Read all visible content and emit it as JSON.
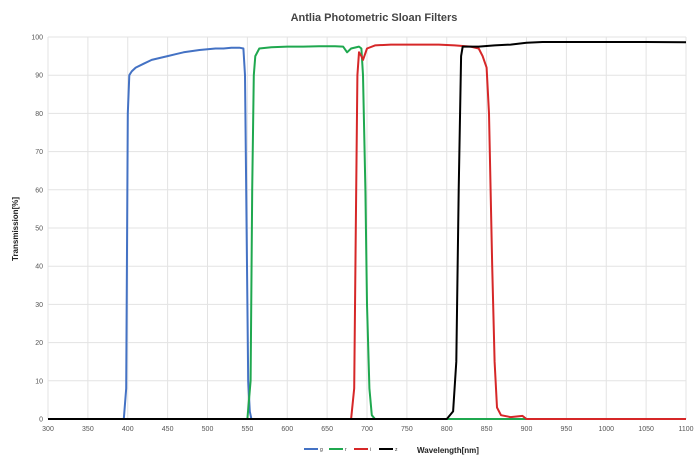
{
  "chart_data": {
    "type": "line",
    "title": "Antlia Photometric Sloan Filters",
    "xlabel": "Wavelength[nm]",
    "ylabel": "Transmission[%]",
    "xlim": [
      300,
      1100
    ],
    "ylim": [
      0,
      100
    ],
    "xticks": [
      300,
      350,
      400,
      450,
      500,
      550,
      600,
      650,
      700,
      750,
      800,
      850,
      900,
      950,
      1000,
      1050,
      1100
    ],
    "yticks": [
      0,
      10,
      20,
      30,
      40,
      50,
      60,
      70,
      80,
      90,
      100
    ],
    "grid": true,
    "legend_position": "bottom",
    "series": [
      {
        "name": "g",
        "color": "#4472C4",
        "points": [
          [
            300,
            0
          ],
          [
            395,
            0
          ],
          [
            398,
            8
          ],
          [
            400,
            80
          ],
          [
            402,
            90
          ],
          [
            405,
            91
          ],
          [
            410,
            92
          ],
          [
            420,
            93
          ],
          [
            430,
            94
          ],
          [
            440,
            94.5
          ],
          [
            450,
            95
          ],
          [
            460,
            95.5
          ],
          [
            470,
            96
          ],
          [
            480,
            96.3
          ],
          [
            490,
            96.6
          ],
          [
            500,
            96.8
          ],
          [
            510,
            97
          ],
          [
            520,
            97
          ],
          [
            530,
            97.2
          ],
          [
            540,
            97.2
          ],
          [
            545,
            97
          ],
          [
            547,
            90
          ],
          [
            549,
            50
          ],
          [
            551,
            10
          ],
          [
            553,
            2
          ],
          [
            555,
            0
          ],
          [
            1100,
            0
          ]
        ]
      },
      {
        "name": "r",
        "color": "#1FA84F",
        "points": [
          [
            300,
            0
          ],
          [
            550,
            0
          ],
          [
            554,
            10
          ],
          [
            556,
            60
          ],
          [
            558,
            90
          ],
          [
            560,
            95
          ],
          [
            565,
            97
          ],
          [
            580,
            97.3
          ],
          [
            600,
            97.5
          ],
          [
            620,
            97.5
          ],
          [
            640,
            97.6
          ],
          [
            660,
            97.6
          ],
          [
            670,
            97.5
          ],
          [
            675,
            96
          ],
          [
            680,
            97
          ],
          [
            690,
            97.5
          ],
          [
            693,
            97
          ],
          [
            695,
            90
          ],
          [
            698,
            60
          ],
          [
            700,
            30
          ],
          [
            703,
            8
          ],
          [
            706,
            1
          ],
          [
            710,
            0
          ],
          [
            1100,
            0
          ]
        ]
      },
      {
        "name": "i",
        "color": "#D62728",
        "points": [
          [
            300,
            0
          ],
          [
            680,
            0
          ],
          [
            684,
            8
          ],
          [
            686,
            50
          ],
          [
            688,
            90
          ],
          [
            690,
            96
          ],
          [
            693,
            95
          ],
          [
            695,
            94
          ],
          [
            700,
            97
          ],
          [
            710,
            97.8
          ],
          [
            730,
            98
          ],
          [
            760,
            98
          ],
          [
            790,
            98
          ],
          [
            810,
            97.8
          ],
          [
            830,
            97.5
          ],
          [
            840,
            97
          ],
          [
            845,
            95
          ],
          [
            850,
            92
          ],
          [
            853,
            80
          ],
          [
            855,
            60
          ],
          [
            857,
            40
          ],
          [
            860,
            15
          ],
          [
            863,
            3
          ],
          [
            868,
            1
          ],
          [
            880,
            0.5
          ],
          [
            895,
            0.8
          ],
          [
            900,
            0
          ],
          [
            1100,
            0
          ]
        ]
      },
      {
        "name": "z",
        "color": "#000000",
        "points": [
          [
            300,
            0
          ],
          [
            800,
            0
          ],
          [
            808,
            2
          ],
          [
            812,
            15
          ],
          [
            815,
            60
          ],
          [
            818,
            95
          ],
          [
            820,
            97.5
          ],
          [
            840,
            97.5
          ],
          [
            860,
            97.8
          ],
          [
            880,
            98
          ],
          [
            900,
            98.5
          ],
          [
            920,
            98.7
          ],
          [
            950,
            98.7
          ],
          [
            1000,
            98.7
          ],
          [
            1050,
            98.7
          ],
          [
            1100,
            98.6
          ]
        ]
      }
    ]
  }
}
